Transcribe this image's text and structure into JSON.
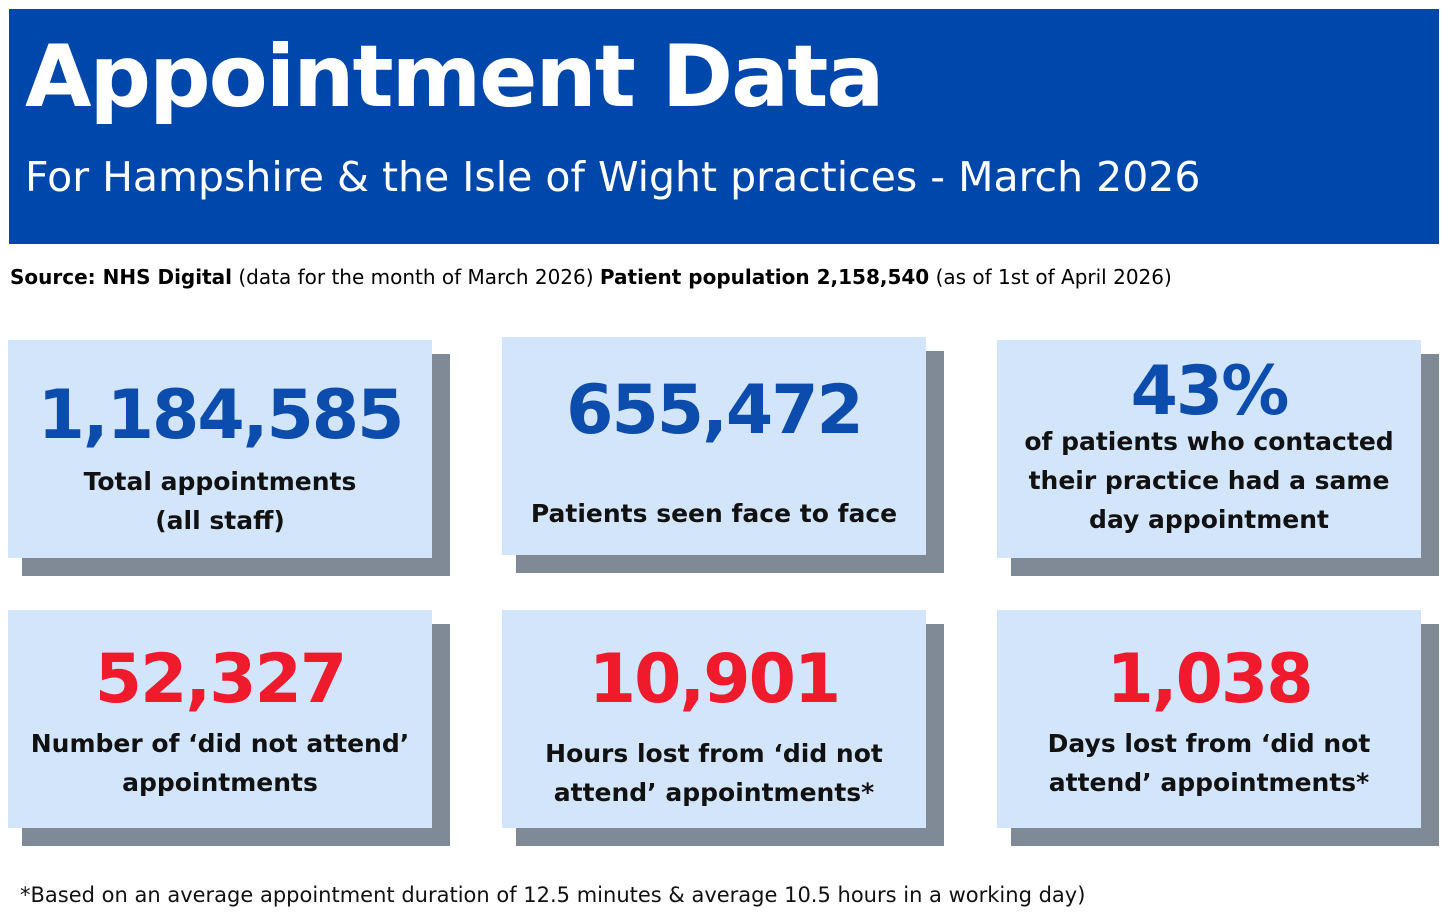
{
  "header": {
    "title": "Appointment Data",
    "subtitle": "For Hampshire & the Isle of Wight practices - March 2026"
  },
  "source_line": {
    "source_label": "Source: NHS Digital",
    "period_note": "(data for the month of March 2026)",
    "population_label": "Patient population 2,158,540",
    "population_note": "(as of 1st of April 2026)"
  },
  "stats": [
    {
      "value": "1,184,585",
      "label": "Total appointments",
      "label_line2": "(all staff)",
      "color": "#0c4cad"
    },
    {
      "value": "655,472",
      "label": "Patients seen face to face",
      "color": "#0c4cad"
    },
    {
      "value": "43%",
      "label": "of patients who contacted their practice had a same day appointment",
      "color": "#0c4cad"
    },
    {
      "value": "52,327",
      "label": "Number of ‘did not attend’ appointments",
      "color": "#ef1a2b"
    },
    {
      "value": "10,901",
      "label": "Hours lost from ‘did not attend’ appointments*",
      "color": "#ef1a2b"
    },
    {
      "value": "1,038",
      "label": "Days lost from ‘did not attend’ appointments*",
      "color": "#ef1a2b"
    }
  ],
  "footnote": "*Based on an average appointment duration of 12.5 minutes & average 10.5 hours in a working day)",
  "colors": {
    "header_bg": "#0047ab",
    "card_bg": "#d2e5fa",
    "card_shadow": "#808a96",
    "value_blue": "#0c4cad",
    "value_red": "#ef1a2b"
  }
}
